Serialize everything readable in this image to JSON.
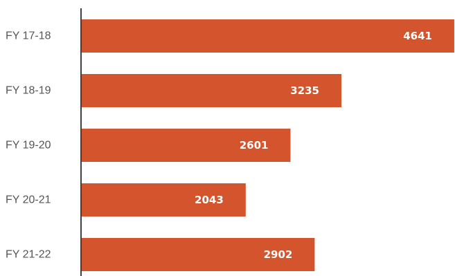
{
  "chart_data": {
    "type": "bar",
    "orientation": "horizontal",
    "categories": [
      "FY 17-18",
      "FY 18-19",
      "FY 19-20",
      "FY 20-21",
      "FY 21-22"
    ],
    "values": [
      4641,
      3235,
      2601,
      2043,
      2902
    ],
    "title": "",
    "xlabel": "",
    "ylabel": "",
    "xlim": [
      0,
      4650
    ],
    "grid": false,
    "legend": "none",
    "data_labels": true,
    "bar_color": "#d4552d",
    "label_color": "#ffffff",
    "axis_color": "#404040"
  }
}
